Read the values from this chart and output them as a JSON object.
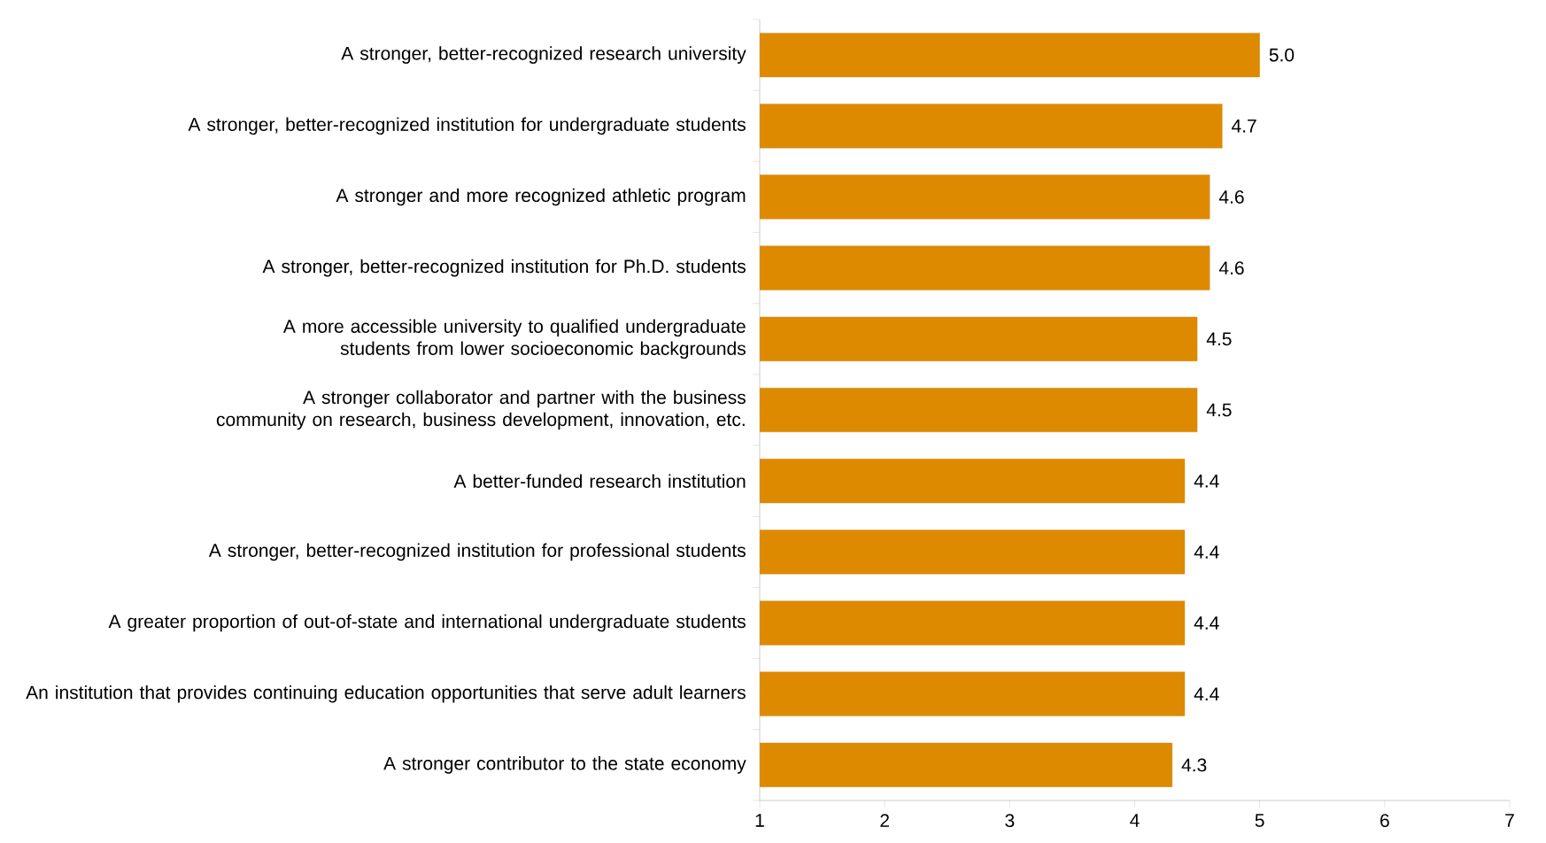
{
  "chart_data": {
    "type": "bar",
    "orientation": "horizontal",
    "categories": [
      "A stronger, better-recognized research university",
      "A stronger, better-recognized institution for undergraduate students",
      "A stronger and more recognized athletic program",
      "A stronger, better-recognized institution for Ph.D. students",
      "A more accessible university to qualified undergraduate students from lower socioeconomic backgrounds",
      "A stronger collaborator and partner with the business community on research, business development, innovation, etc.",
      "A better-funded research institution",
      "A stronger, better-recognized institution for professional students",
      "A greater proportion of out-of-state and international undergraduate students",
      "An institution that provides continuing education opportunities that serve adult learners",
      "A stronger contributor to the state economy"
    ],
    "values": [
      5.0,
      4.7,
      4.6,
      4.6,
      4.5,
      4.5,
      4.4,
      4.4,
      4.4,
      4.4,
      4.3
    ],
    "value_labels": [
      "5.0",
      "4.7",
      "4.6",
      "4.6",
      "4.5",
      "4.5",
      "4.4",
      "4.4",
      "4.4",
      "4.4",
      "4.3"
    ],
    "color": "#dd8a00",
    "xlim": [
      1,
      7
    ],
    "xticks": [
      1,
      2,
      3,
      4,
      5,
      6,
      7
    ],
    "grid": false
  }
}
